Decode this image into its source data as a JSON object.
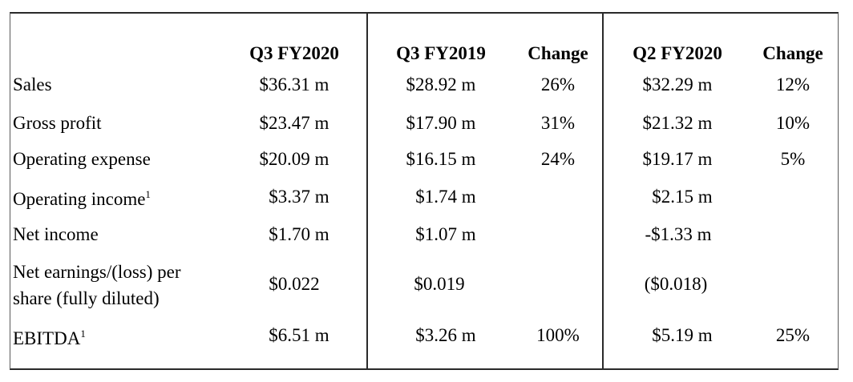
{
  "headers": [
    "Q3 FY2020",
    "Q3 FY2019",
    "Change",
    "Q2 FY2020",
    "Change"
  ],
  "rows": [
    {
      "label": "Sales",
      "sup": "",
      "q3_2020": "$36.31 m",
      "q3_2019": "$28.92 m",
      "chg_yoy": "26%",
      "q2_2020": "$32.29 m",
      "chg_qoq": "12%"
    },
    {
      "label": "Gross profit",
      "sup": "",
      "q3_2020": "$23.47 m",
      "q3_2019": "$17.90 m",
      "chg_yoy": "31%",
      "q2_2020": "$21.32 m",
      "chg_qoq": "10%"
    },
    {
      "label": "Operating expense",
      "sup": "",
      "q3_2020": "$20.09 m",
      "q3_2019": "$16.15 m",
      "chg_yoy": "24%",
      "q2_2020": "$19.17 m",
      "chg_qoq": "5%"
    },
    {
      "label": "Operating income",
      "sup": "1",
      "q3_2020": "$3.37 m",
      "q3_2019": "$1.74 m",
      "chg_yoy": "",
      "q2_2020": "$2.15 m",
      "chg_qoq": ""
    },
    {
      "label": "Net income",
      "sup": "",
      "q3_2020": "$1.70 m",
      "q3_2019": "$1.07 m",
      "chg_yoy": "",
      "q2_2020": "-$1.33 m",
      "chg_qoq": ""
    },
    {
      "label_line1": "Net earnings/(loss) per",
      "label_line2": "share (fully diluted)",
      "q3_2020": "$0.022",
      "q3_2019": "$0.019",
      "chg_yoy": "",
      "q2_2020": "($0.018)",
      "chg_qoq": ""
    },
    {
      "label": "EBITDA",
      "sup": "1",
      "q3_2020": "$6.51 m",
      "q3_2019": "$3.26 m",
      "chg_yoy": "100%",
      "q2_2020": "$5.19 m",
      "chg_qoq": "25%"
    }
  ]
}
